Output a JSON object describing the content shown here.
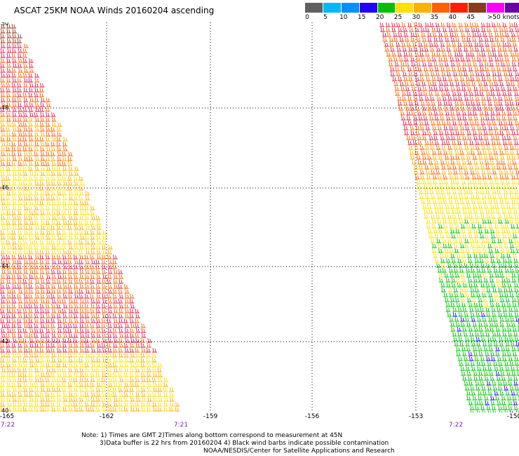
{
  "title": "ASCAT 25KM NOAA Winds 20160204 ascending",
  "legend": {
    "colors": [
      "#606060",
      "#00b8ff",
      "#0090ff",
      "#2000ff",
      "#00c000",
      "#ffe000",
      "#ffb000",
      "#ff6000",
      "#ff2000",
      "#8b3a1a",
      "#ff00ff",
      "#6a00a8"
    ],
    "ticks": [
      "0",
      "5",
      "10",
      "15",
      "20",
      "25",
      "30",
      "35",
      "40",
      "45",
      ">50 knots"
    ]
  },
  "map": {
    "lat_labels": [
      "50",
      "48",
      "46",
      "44",
      "42",
      "40"
    ],
    "lon_labels": [
      "-165",
      "-162",
      "-159",
      "-156",
      "-153",
      "-150"
    ],
    "time_labels": [
      "7:22",
      "7:21",
      "7:22"
    ]
  },
  "notes": {
    "line1": "Note: 1) Times are GMT 2)Times along bottom correspond to measurement at 45N",
    "line2": "3)Data buffer is 22 hrs from 20160204 4) Black wind barbs indicate possible contamination",
    "line3": "NOAA/NESDIS/Center for Satellite Applications and Research"
  }
}
